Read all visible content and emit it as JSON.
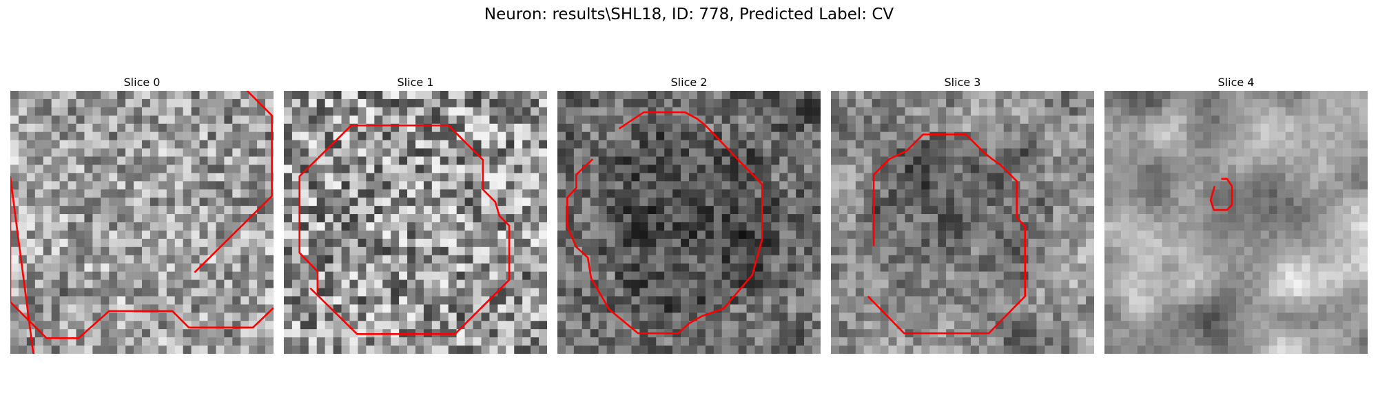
{
  "figure": {
    "title": "Neuron: results\\SHL18, ID: 778, Predicted Label: CV"
  },
  "panels": [
    {
      "title": "Slice 0"
    },
    {
      "title": "Slice 1"
    },
    {
      "title": "Slice 2"
    },
    {
      "title": "Slice 3"
    },
    {
      "title": "Slice 4"
    }
  ],
  "colors": {
    "contour": "#ff0000"
  }
}
